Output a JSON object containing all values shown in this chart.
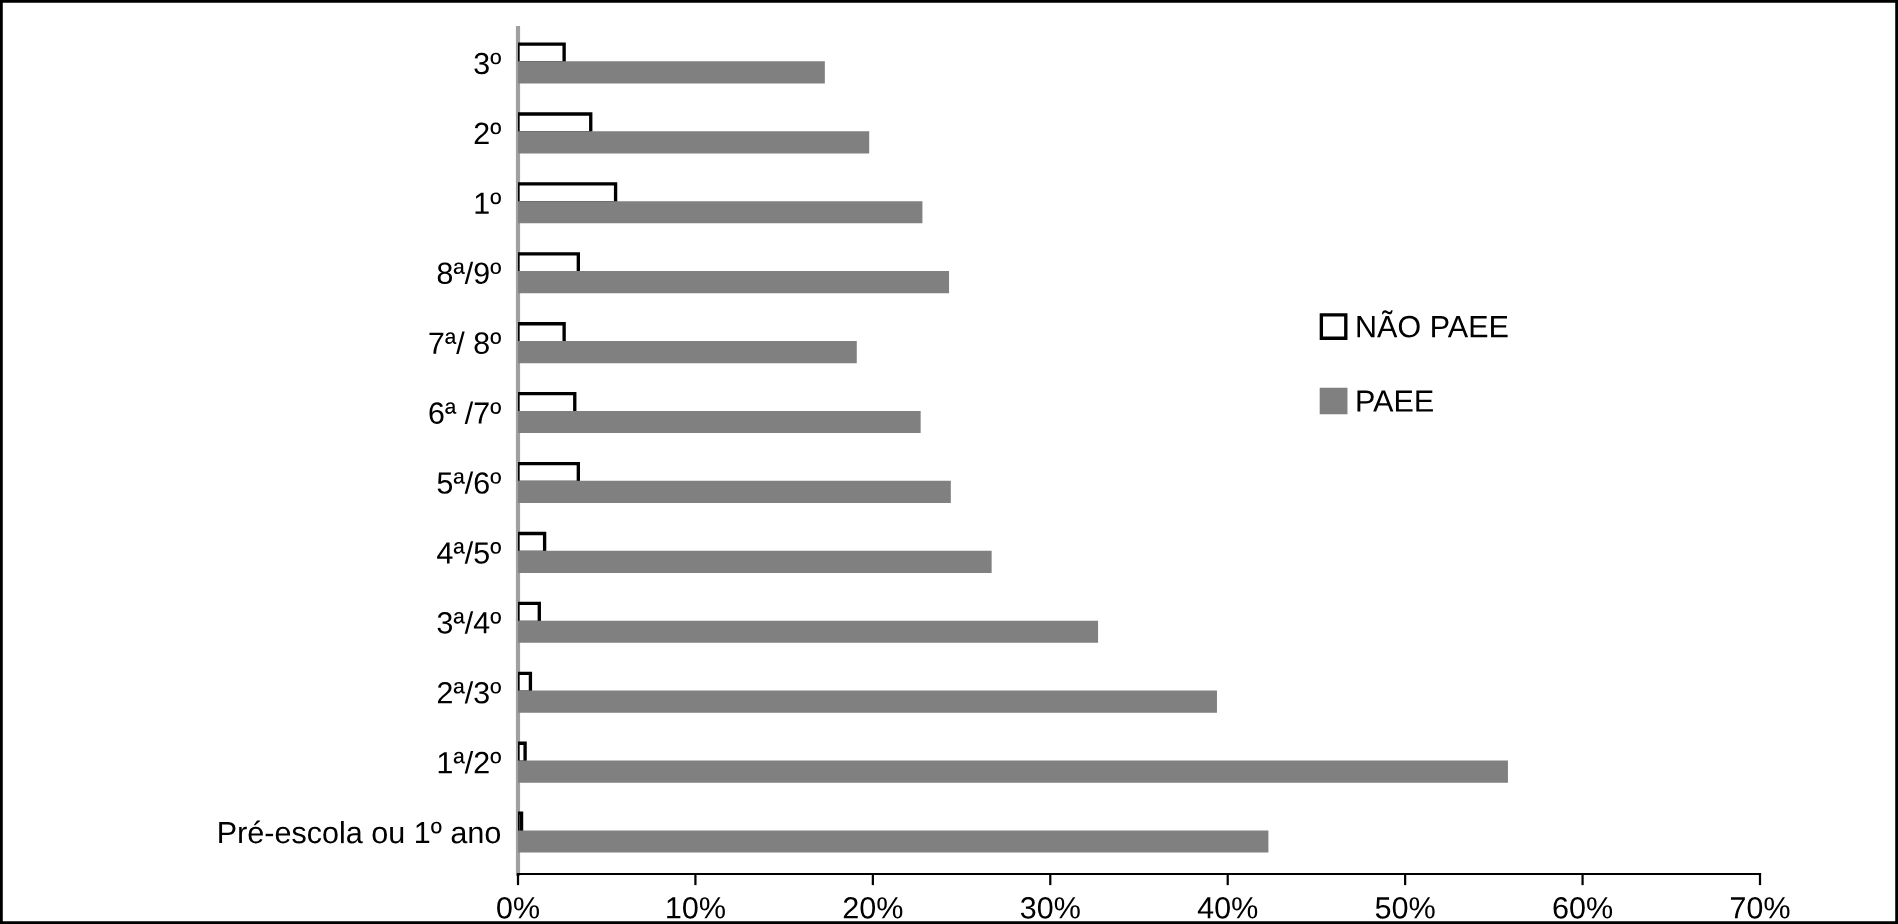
{
  "chart_data": {
    "type": "bar",
    "orientation": "horizontal",
    "categories": [
      "3º",
      "2º",
      "1º",
      "8ª/9º",
      "7ª/ 8º",
      "6ª /7º",
      "5ª/6º",
      "4ª/5º",
      "3ª/4º",
      "2ª/3º",
      "1ª/2º",
      "Pré-escola ou 1º ano"
    ],
    "series": [
      {
        "name": "NÃO PAEE",
        "color": "#ffffff",
        "values": [
          2.6,
          4.1,
          5.5,
          3.4,
          2.6,
          3.2,
          3.4,
          1.5,
          1.2,
          0.7,
          0.4,
          0.2
        ]
      },
      {
        "name": "PAEE",
        "color": "#808080",
        "values": [
          17.2,
          19.7,
          22.7,
          24.2,
          19.0,
          22.6,
          24.3,
          26.6,
          32.6,
          39.3,
          55.7,
          42.2
        ]
      }
    ],
    "xlim": [
      0,
      70
    ],
    "xticks": [
      {
        "value": 0,
        "label": "0%"
      },
      {
        "value": 10,
        "label": "10%"
      },
      {
        "value": 20,
        "label": "20%"
      },
      {
        "value": 30,
        "label": "30%"
      },
      {
        "value": 40,
        "label": "40%"
      },
      {
        "value": 50,
        "label": "50%"
      },
      {
        "value": 60,
        "label": "60%"
      },
      {
        "value": 70,
        "label": "70%"
      }
    ],
    "grid": false,
    "legend": "right"
  }
}
